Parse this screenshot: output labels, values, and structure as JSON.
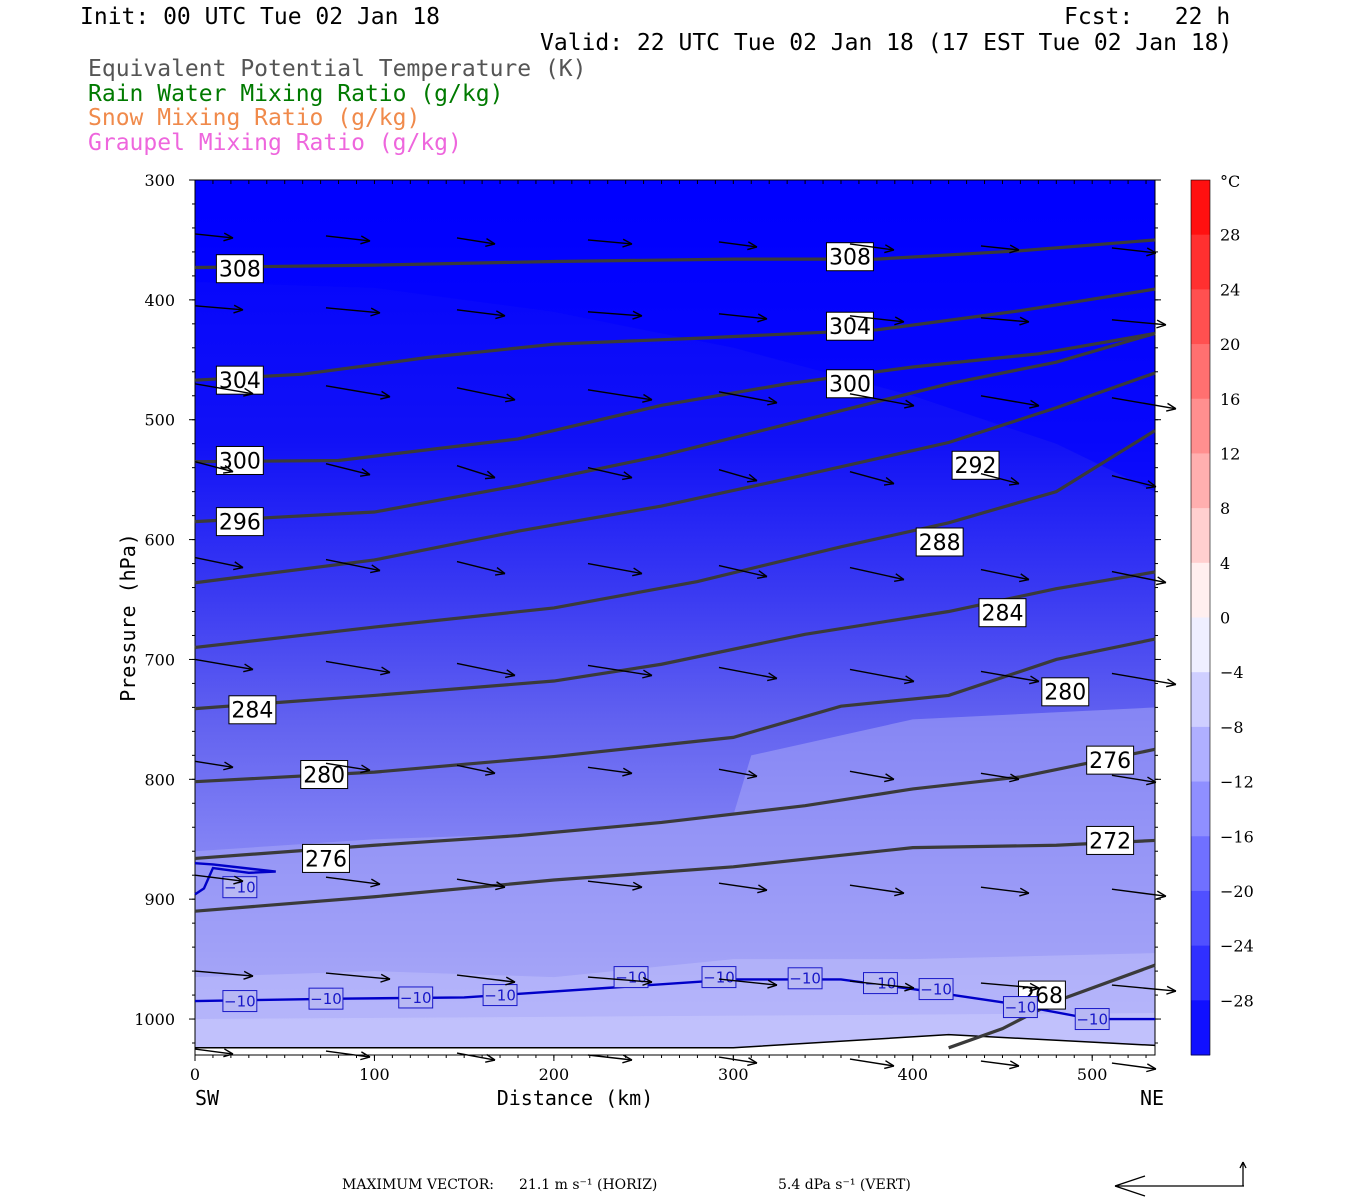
{
  "header": {
    "init": "Init: 00 UTC Tue 02 Jan 18",
    "fcst": "Fcst:   22 h",
    "valid": "Valid: 22 UTC Tue 02 Jan 18 (17 EST Tue 02 Jan 18)",
    "legend": [
      {
        "text": "Equivalent Potential Temperature (K)",
        "color": "#555555"
      },
      {
        "text": "Rain Water Mixing Ratio (g/kg)",
        "color": "#007a00"
      },
      {
        "text": "Snow Mixing Ratio (g/kg)",
        "color": "#f08a4b"
      },
      {
        "text": "Graupel Mixing Ratio (g/kg)",
        "color": "#ee66dd"
      }
    ]
  },
  "chart_data": {
    "type": "contour",
    "xlabel": "Distance (km)",
    "ylabel": "Pressure (hPa)",
    "xlim": [
      0,
      535
    ],
    "ylim": [
      1030,
      300
    ],
    "x_ticks": [
      0,
      100,
      200,
      300,
      400,
      500
    ],
    "y_ticks": [
      300,
      400,
      500,
      600,
      700,
      800,
      900,
      1000
    ],
    "x_end_labels": {
      "left": "SW",
      "right": "NE"
    },
    "colorbar": {
      "unit": "°C",
      "labels": [
        28,
        24,
        20,
        16,
        12,
        8,
        4,
        0,
        -4,
        -8,
        -12,
        -16,
        -20,
        -24,
        -28
      ]
    },
    "theta_e_contours": [
      {
        "label": "308",
        "points": [
          [
            0,
            373
          ],
          [
            100,
            371
          ],
          [
            200,
            368
          ],
          [
            300,
            366
          ],
          [
            380,
            366
          ],
          [
            460,
            359
          ],
          [
            535,
            350
          ]
        ],
        "label_at": [
          [
            25,
            374
          ],
          [
            365,
            364
          ]
        ]
      },
      {
        "label": "304",
        "points": [
          [
            0,
            467
          ],
          [
            60,
            462
          ],
          [
            130,
            448
          ],
          [
            200,
            437
          ],
          [
            280,
            432
          ],
          [
            380,
            425
          ],
          [
            460,
            409
          ],
          [
            535,
            391
          ]
        ],
        "label_at": [
          [
            25,
            467
          ],
          [
            365,
            422
          ]
        ]
      },
      {
        "label": "300",
        "points": [
          [
            0,
            535
          ],
          [
            80,
            534
          ],
          [
            180,
            516
          ],
          [
            260,
            488
          ],
          [
            330,
            470
          ],
          [
            400,
            456
          ],
          [
            470,
            445
          ],
          [
            535,
            428
          ]
        ],
        "label_at": [
          [
            25,
            534
          ],
          [
            365,
            470
          ]
        ]
      },
      {
        "label": "292",
        "points": [
          [
            0,
            636
          ],
          [
            100,
            617
          ],
          [
            180,
            593
          ],
          [
            260,
            572
          ],
          [
            340,
            546
          ],
          [
            420,
            519
          ],
          [
            480,
            490
          ],
          [
            535,
            461
          ]
        ],
        "label_at": [
          [
            435,
            538
          ]
        ]
      },
      {
        "label": "288",
        "points": [
          [
            0,
            690
          ],
          [
            100,
            673
          ],
          [
            200,
            657
          ],
          [
            280,
            635
          ],
          [
            360,
            606
          ],
          [
            420,
            586
          ],
          [
            480,
            560
          ],
          [
            535,
            509
          ]
        ],
        "label_at": [
          [
            415,
            602
          ]
        ]
      },
      {
        "label": "296",
        "points": [
          [
            0,
            585
          ],
          [
            100,
            577
          ],
          [
            180,
            555
          ],
          [
            260,
            530
          ],
          [
            340,
            500
          ],
          [
            420,
            470
          ],
          [
            480,
            452
          ],
          [
            535,
            428
          ]
        ],
        "label_at": [
          [
            25,
            585
          ]
        ]
      },
      {
        "label": "284",
        "points": [
          [
            0,
            741
          ],
          [
            100,
            730
          ],
          [
            200,
            718
          ],
          [
            260,
            704
          ],
          [
            340,
            679
          ],
          [
            420,
            660
          ],
          [
            480,
            641
          ],
          [
            535,
            627
          ]
        ],
        "label_at": [
          [
            450,
            661
          ]
        ],
        "extra_label_at": [
          [
            32,
            742
          ]
        ]
      },
      {
        "label": "280",
        "points": [
          [
            0,
            802
          ],
          [
            100,
            794
          ],
          [
            200,
            781
          ],
          [
            300,
            765
          ],
          [
            360,
            739
          ],
          [
            420,
            730
          ],
          [
            480,
            700
          ],
          [
            535,
            683
          ]
        ],
        "label_at": [
          [
            485,
            727
          ]
        ],
        "extra_label_at": [
          [
            72,
            796
          ]
        ]
      },
      {
        "label": "276",
        "points": [
          [
            0,
            866
          ],
          [
            100,
            855
          ],
          [
            180,
            847
          ],
          [
            260,
            836
          ],
          [
            340,
            822
          ],
          [
            400,
            808
          ],
          [
            460,
            798
          ],
          [
            535,
            775
          ]
        ],
        "label_at": [
          [
            510,
            784
          ]
        ],
        "extra_label_at": [
          [
            73,
            866
          ]
        ]
      },
      {
        "label": "272",
        "points": [
          [
            0,
            910
          ],
          [
            100,
            898
          ],
          [
            200,
            884
          ],
          [
            300,
            873
          ],
          [
            400,
            857
          ],
          [
            480,
            855
          ],
          [
            535,
            851
          ]
        ],
        "label_at": [
          [
            510,
            851
          ]
        ]
      },
      {
        "label": "268",
        "points": [
          [
            420,
            1024
          ],
          [
            450,
            1008
          ],
          [
            480,
            985
          ],
          [
            535,
            955
          ]
        ],
        "label_at": [
          [
            472,
            980
          ]
        ]
      }
    ],
    "temperature_contours": [
      {
        "label": "-10",
        "points": [
          [
            0,
            985
          ],
          [
            80,
            983
          ],
          [
            150,
            982
          ],
          [
            230,
            974
          ],
          [
            300,
            967
          ],
          [
            360,
            967
          ],
          [
            400,
            975
          ],
          [
            450,
            986
          ],
          [
            500,
            1000
          ],
          [
            535,
            1000
          ]
        ],
        "label_at": [
          [
            25,
            985
          ],
          [
            73,
            983
          ],
          [
            123,
            982
          ],
          [
            170,
            980
          ],
          [
            243,
            965
          ],
          [
            292,
            965
          ],
          [
            340,
            966
          ],
          [
            382,
            970
          ],
          [
            413,
            975
          ],
          [
            460,
            990
          ],
          [
            500,
            1000
          ]
        ]
      },
      {
        "label": "-10",
        "points": [
          [
            0,
            896
          ],
          [
            5,
            891
          ],
          [
            10,
            874
          ],
          [
            30,
            878
          ],
          [
            45,
            877
          ],
          [
            10,
            871
          ],
          [
            0,
            870
          ]
        ],
        "label_at": [
          [
            25,
            890
          ]
        ]
      }
    ],
    "max_vector": {
      "horizontal": "21.1 m s⁻¹ (HORIZ)",
      "vertical": "5.4 dPa s⁻¹ (VERT)"
    }
  },
  "footer": {
    "label": "MAXIMUM VECTOR:",
    "horiz": "21.1 m s⁻¹ (HORIZ)",
    "vert": "5.4 dPa s⁻¹ (VERT)"
  }
}
